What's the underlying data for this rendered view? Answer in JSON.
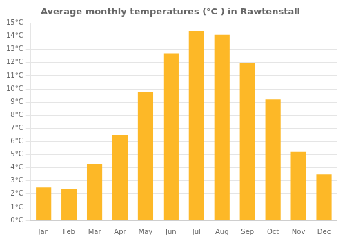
{
  "chart_data": {
    "type": "bar",
    "title": "Average monthly temperatures (°C ) in Rawtenstall",
    "categories": [
      "Jan",
      "Feb",
      "Mar",
      "Apr",
      "May",
      "Jun",
      "Jul",
      "Aug",
      "Sep",
      "Oct",
      "Nov",
      "Dec"
    ],
    "values": [
      2.5,
      2.4,
      4.3,
      6.5,
      9.8,
      12.7,
      14.4,
      14.1,
      12.0,
      9.2,
      5.2,
      3.5
    ],
    "color": "#FDB827",
    "ylim": [
      0,
      15
    ],
    "yticks": [
      {
        "value": 0,
        "label": "0°C"
      },
      {
        "value": 1,
        "label": "1°C"
      },
      {
        "value": 2,
        "label": "2°C"
      },
      {
        "value": 3,
        "label": "3°C"
      },
      {
        "value": 4,
        "label": "4°C"
      },
      {
        "value": 5,
        "label": "5°C"
      },
      {
        "value": 6,
        "label": "6°C"
      },
      {
        "value": 7,
        "label": "7°C"
      },
      {
        "value": 8,
        "label": "8°C"
      },
      {
        "value": 9,
        "label": "9°C"
      },
      {
        "value": 10,
        "label": "10°C"
      },
      {
        "value": 11,
        "label": "11°C"
      },
      {
        "value": 12,
        "label": "12°C"
      },
      {
        "value": 13,
        "label": "13°C"
      },
      {
        "value": 14,
        "label": "14°C"
      },
      {
        "value": 15,
        "label": "15°C"
      }
    ],
    "grid": true
  }
}
